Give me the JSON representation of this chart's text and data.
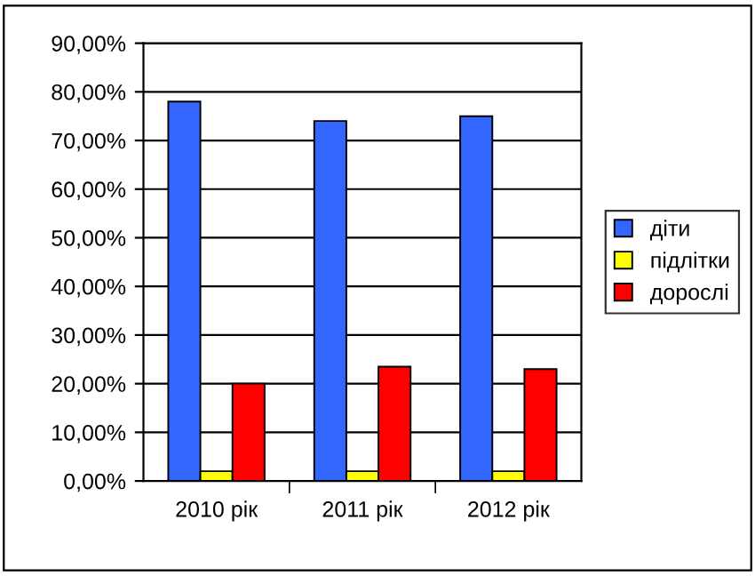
{
  "chart_data": {
    "type": "bar",
    "categories": [
      "2010 рік",
      "2011 рік",
      "2012 рік"
    ],
    "series": [
      {
        "name": "діти",
        "color": "#3366ff",
        "values": [
          78,
          74,
          75
        ]
      },
      {
        "name": "підлітки",
        "color": "#ffff00",
        "values": [
          2,
          2,
          2
        ]
      },
      {
        "name": "дорослі",
        "color": "#ff0000",
        "values": [
          20,
          23.5,
          23
        ]
      }
    ],
    "ylim": [
      0,
      90
    ],
    "yticks": [
      {
        "value": 0,
        "label": "0,00%"
      },
      {
        "value": 10,
        "label": "10,00%"
      },
      {
        "value": 20,
        "label": "20,00%"
      },
      {
        "value": 30,
        "label": "30,00%"
      },
      {
        "value": 40,
        "label": "40,00%"
      },
      {
        "value": 50,
        "label": "50,00%"
      },
      {
        "value": 60,
        "label": "60,00%"
      },
      {
        "value": 70,
        "label": "70,00%"
      },
      {
        "value": 80,
        "label": "80,00%"
      },
      {
        "value": 90,
        "label": "90,00%"
      }
    ],
    "grid": "y",
    "legend": "right"
  }
}
